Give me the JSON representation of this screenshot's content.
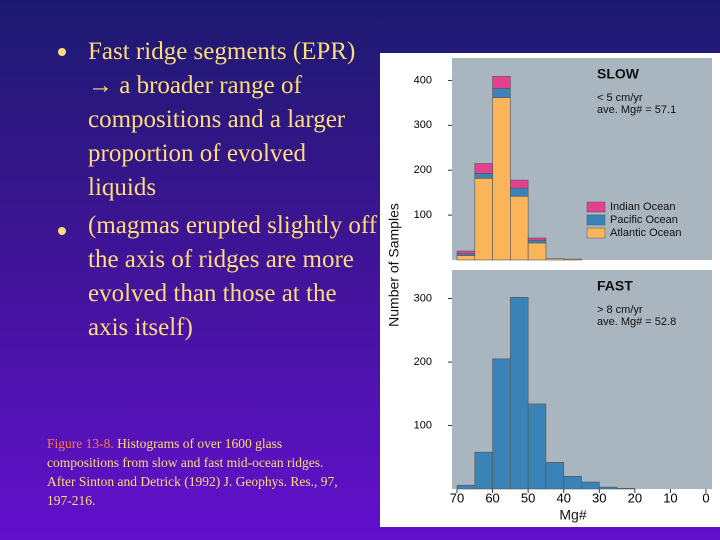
{
  "slide": {
    "bullets": [
      "Fast ridge segments (EPR) → a broader range of compositions and a larger proportion of evolved liquids",
      "(magmas erupted slightly off the axis of ridges are more evolved than those at the axis itself)"
    ],
    "caption_label": "Figure 13-8.",
    "caption": "Histograms of over 1600 glass compositions from slow and fast mid-ocean ridges. After Sinton and Detrick (1992) J. Geophys. Res., 97, 197-216."
  },
  "chart_data": [
    {
      "type": "histogram",
      "annotations": [
        "SLOW",
        "< 5 cm/yr",
        "ave. Mg# = 57.1"
      ],
      "ylabel": "Number of Samples",
      "bins": [
        70,
        65,
        60,
        55,
        50,
        45,
        40,
        35,
        30,
        25,
        20,
        15,
        10,
        5,
        0
      ],
      "series": [
        {
          "name": "Atlantic Ocean",
          "color": "#fab45a",
          "values": [
            10,
            182,
            362,
            142,
            38,
            3,
            2,
            0,
            0,
            0,
            0,
            0,
            0,
            0
          ]
        },
        {
          "name": "Pacific Ocean",
          "color": "#3a83b6",
          "values": [
            4,
            11,
            20,
            18,
            6,
            0,
            0,
            0,
            0,
            0,
            0,
            0,
            0,
            0
          ]
        },
        {
          "name": "Indian Ocean",
          "color": "#e5408f",
          "values": [
            6,
            22,
            27,
            18,
            5,
            0,
            0,
            0,
            0,
            0,
            0,
            0,
            0,
            0
          ]
        }
      ],
      "xlim": [
        70,
        0
      ],
      "ylim": [
        0,
        450
      ],
      "yticks": [
        100,
        200,
        300,
        400
      ]
    },
    {
      "type": "histogram",
      "annotations": [
        "FAST",
        "> 8 cm/yr",
        "ave. Mg# = 52.8"
      ],
      "xlabel": "Mg#",
      "bins": [
        70,
        65,
        60,
        55,
        50,
        45,
        40,
        35,
        30,
        25,
        20,
        15,
        10,
        5,
        0
      ],
      "series": [
        {
          "name": "Pacific Ocean",
          "color": "#3a83b6",
          "values": [
            6,
            58,
            205,
            302,
            134,
            42,
            20,
            11,
            3,
            1,
            0,
            0,
            0,
            0
          ]
        }
      ],
      "xlim": [
        70,
        0
      ],
      "xticks": [
        70,
        60,
        50,
        40,
        30,
        20,
        10,
        0
      ],
      "ylim": [
        0,
        345
      ],
      "yticks": [
        100,
        200,
        300
      ]
    }
  ]
}
